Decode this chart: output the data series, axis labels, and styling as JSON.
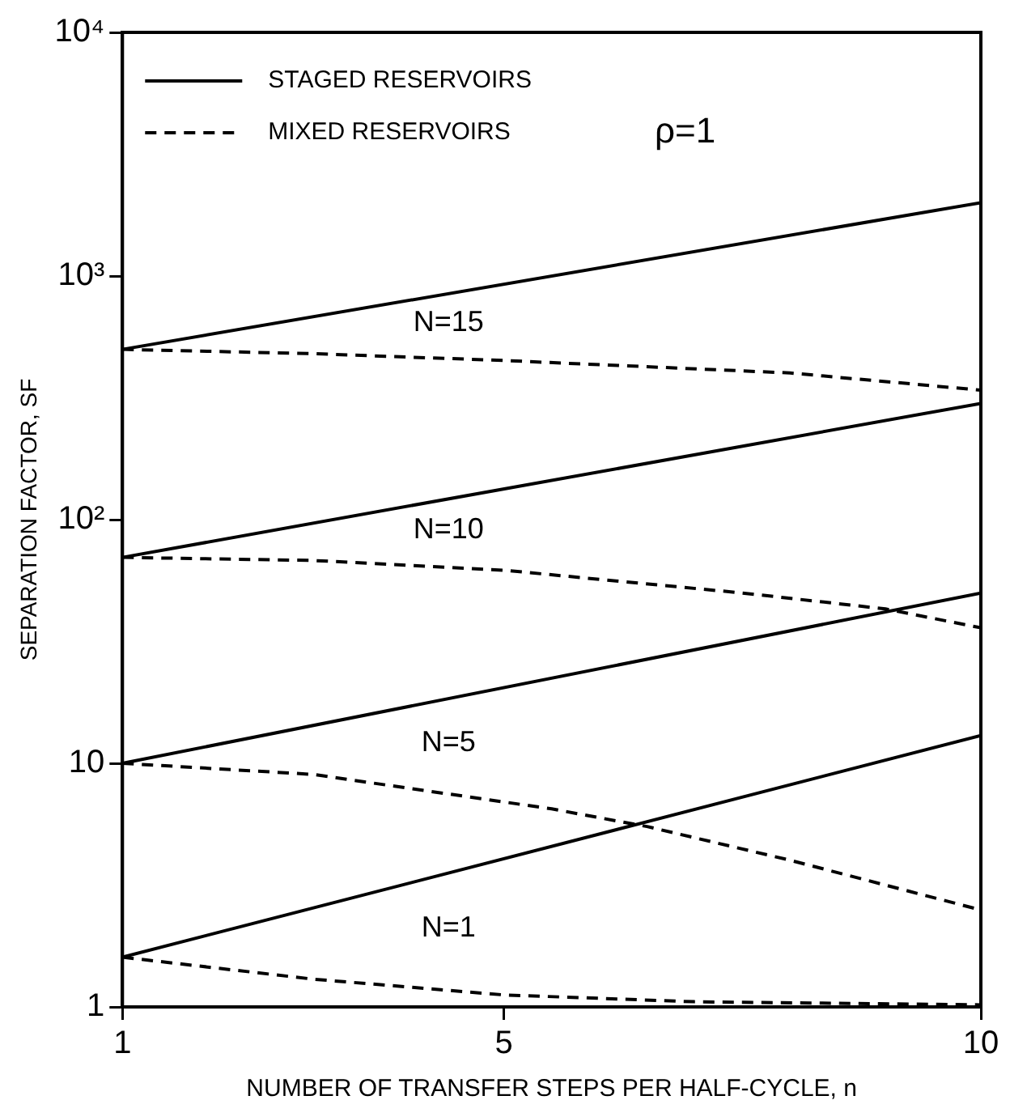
{
  "chart_data": {
    "type": "line",
    "xlabel": "NUMBER OF TRANSFER STEPS PER HALF-CYCLE, n",
    "ylabel": "SEPARATION FACTOR, SF",
    "log": "y",
    "xlim": [
      1,
      10
    ],
    "xticks": [
      1,
      5,
      10
    ],
    "ylim": [
      1,
      10000
    ],
    "yticks": [
      1,
      10,
      {
        "value": 100,
        "label": "10²"
      },
      {
        "value": 1000,
        "label": "10³"
      },
      {
        "value": 10000,
        "label": "10⁴"
      }
    ],
    "grid": false,
    "legend": "top left",
    "marker": "none",
    "annotations": [
      "ρ=1",
      "N=15",
      "N=10",
      "N=5",
      "N=1"
    ],
    "series": [
      {
        "name": "STAGED RESERVOIRS",
        "color": "#000000",
        "line_style": "solid",
        "x": [
          1,
          10
        ],
        "values": [
          500,
          2000
        ]
      },
      {
        "name": "MIXED RESERVOIRS",
        "color": "#000000",
        "line_style": "dashed",
        "x": [
          1,
          3,
          5,
          8,
          10
        ],
        "values": [
          500,
          480,
          450,
          400,
          340
        ]
      },
      {
        "color": "#000000",
        "line_style": "solid",
        "x": [
          1,
          10
        ],
        "values": [
          70,
          300
        ]
      },
      {
        "color": "#000000",
        "line_style": "dashed",
        "x": [
          1,
          3,
          5,
          7.5,
          9,
          10
        ],
        "values": [
          70,
          68,
          62,
          50,
          43,
          36
        ]
      },
      {
        "color": "#000000",
        "line_style": "solid",
        "x": [
          1,
          10
        ],
        "values": [
          10,
          50
        ]
      },
      {
        "color": "#000000",
        "line_style": "dashed",
        "x": [
          1,
          3,
          5.5,
          6.5,
          8,
          10
        ],
        "values": [
          10,
          9,
          6.5,
          5.5,
          4,
          2.5
        ]
      },
      {
        "color": "#000000",
        "line_style": "solid",
        "x": [
          1,
          10
        ],
        "values": [
          1.6,
          13
        ]
      },
      {
        "color": "#000000",
        "line_style": "dashed",
        "x": [
          1,
          3,
          5,
          7,
          10
        ],
        "values": [
          1.6,
          1.3,
          1.12,
          1.05,
          1.02
        ]
      }
    ]
  }
}
